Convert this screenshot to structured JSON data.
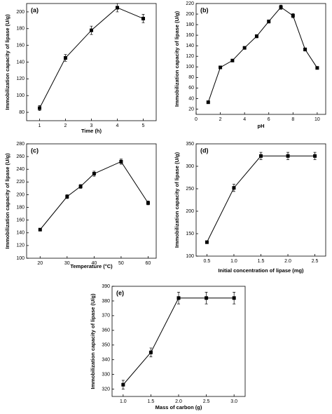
{
  "chart_data": [
    {
      "type": "line",
      "label": "(a)",
      "xlabel": "Time (h)",
      "ylabel": "Immobilization capacity of lipase (U/g)",
      "x": [
        1,
        2,
        3,
        4,
        5
      ],
      "values": [
        85,
        145,
        178,
        205,
        192
      ],
      "errors": [
        3,
        4,
        5,
        5,
        5
      ],
      "xlim": [
        0.5,
        5.5
      ],
      "xticks": [
        1,
        2,
        3,
        4,
        5
      ],
      "ylim": [
        70,
        210
      ],
      "yticks": [
        80,
        100,
        120,
        140,
        160,
        180,
        200
      ],
      "color": "#000000"
    },
    {
      "type": "line",
      "label": "(b)",
      "xlabel": "pH",
      "ylabel": "Immobilization capacity of lipase (U/g)",
      "x": [
        1,
        2,
        3,
        4,
        5,
        6,
        7,
        8,
        9,
        10
      ],
      "values": [
        33,
        99,
        112,
        136,
        158,
        186,
        213,
        197,
        133,
        98
      ],
      "errors": [
        2,
        2,
        2,
        2,
        3,
        3,
        4,
        4,
        3,
        2
      ],
      "xlim": [
        0,
        10.7
      ],
      "xticks": [
        0,
        2,
        4,
        6,
        8,
        10
      ],
      "ylim": [
        10,
        220
      ],
      "yticks": [
        20,
        40,
        60,
        80,
        100,
        120,
        140,
        160,
        180,
        200,
        220
      ],
      "color": "#000000"
    },
    {
      "type": "line",
      "label": "(c)",
      "xlabel": "Temperature (°C)",
      "ylabel": "Immobilization capacity of lipase (U/g)",
      "x": [
        20,
        30,
        35,
        40,
        50,
        60
      ],
      "values": [
        145,
        197,
        213,
        233,
        252,
        187
      ],
      "errors": [
        2,
        3,
        3,
        4,
        4,
        3
      ],
      "xlim": [
        15,
        63
      ],
      "xticks": [
        20,
        30,
        40,
        50,
        60
      ],
      "ylim": [
        100,
        280
      ],
      "yticks": [
        100,
        120,
        140,
        160,
        180,
        200,
        220,
        240,
        260,
        280
      ],
      "color": "#000000"
    },
    {
      "type": "line",
      "label": "(d)",
      "xlabel": "Initial concentration of lipase (mg)",
      "ylabel": "Immobilization capacity of lipase (U/g)",
      "x": [
        0.5,
        1.0,
        1.5,
        2.0,
        2.5
      ],
      "values": [
        131,
        252,
        323,
        323,
        323
      ],
      "errors": [
        3,
        8,
        8,
        8,
        8
      ],
      "xlim": [
        0.3,
        2.7
      ],
      "xticks": [
        0.5,
        {
          "value": 1,
          "label": "1.0"
        },
        1.5,
        {
          "value": 2,
          "label": "2.0"
        },
        2.5
      ],
      "ylim": [
        100,
        350
      ],
      "yticks": [
        100,
        150,
        200,
        250,
        300,
        350
      ],
      "color": "#000000"
    },
    {
      "type": "line",
      "label": "(e)",
      "xlabel": "Mass of carbon (g)",
      "ylabel": "Immobilization capacity of lipase (U/g)",
      "x": [
        1.0,
        1.5,
        2.0,
        2.5,
        3.0
      ],
      "values": [
        323,
        345,
        382,
        382,
        382
      ],
      "errors": [
        3,
        3,
        4,
        4,
        4
      ],
      "xlim": [
        0.8,
        3.2
      ],
      "xticks": [
        {
          "value": 1,
          "label": "1.0"
        },
        1.5,
        {
          "value": 2,
          "label": "2.0"
        },
        2.5,
        {
          "value": 3,
          "label": "3.0"
        }
      ],
      "ylim": [
        315,
        390
      ],
      "yticks": [
        320,
        330,
        340,
        350,
        360,
        370,
        380,
        390
      ],
      "color": "#000000"
    }
  ]
}
